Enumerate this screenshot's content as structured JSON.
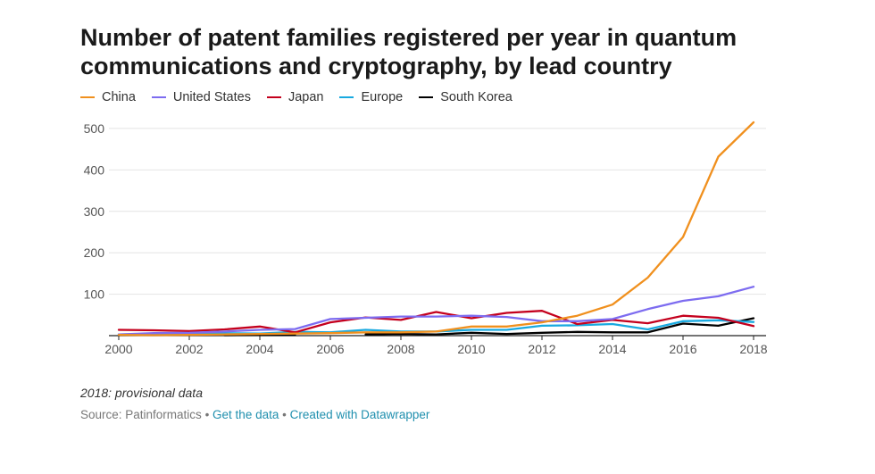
{
  "title": "Number of patent families registered per year in quantum communications and cryptography, by lead country",
  "note": "2018: provisional data",
  "footer": {
    "source": "Source: Patinformatics",
    "sep1": " • ",
    "get_data": "Get the data",
    "sep2": " • ",
    "created_with": "Created with Datawrapper"
  },
  "colors": {
    "China": "#f0901e",
    "United States": "#7d6cf0",
    "Japan": "#c4001d",
    "Europe": "#18a9e0",
    "South Korea": "#000000",
    "grid": "#e4e4e4",
    "axis": "#222222"
  },
  "chart_data": {
    "type": "line",
    "x": [
      2000,
      2001,
      2002,
      2003,
      2004,
      2005,
      2006,
      2007,
      2008,
      2009,
      2010,
      2011,
      2012,
      2013,
      2014,
      2015,
      2016,
      2017,
      2018
    ],
    "xticks": [
      2000,
      2002,
      2004,
      2006,
      2008,
      2010,
      2012,
      2014,
      2016,
      2018
    ],
    "yticks": [
      100,
      200,
      300,
      400,
      500
    ],
    "ylim": [
      0,
      530
    ],
    "grid": true,
    "legend_position": "top-left",
    "series": [
      {
        "name": "China",
        "values": [
          2,
          1,
          2,
          3,
          4,
          5,
          6,
          8,
          8,
          10,
          22,
          22,
          32,
          48,
          75,
          140,
          238,
          432,
          515
        ]
      },
      {
        "name": "United States",
        "values": [
          3,
          6,
          7,
          10,
          14,
          16,
          40,
          43,
          46,
          46,
          48,
          45,
          35,
          35,
          40,
          64,
          84,
          95,
          118
        ]
      },
      {
        "name": "Japan",
        "values": [
          14,
          13,
          11,
          15,
          22,
          8,
          32,
          44,
          38,
          57,
          42,
          55,
          60,
          28,
          38,
          30,
          48,
          43,
          23
        ]
      },
      {
        "name": "Europe",
        "values": [
          3,
          4,
          5,
          6,
          5,
          9,
          8,
          14,
          10,
          10,
          14,
          14,
          24,
          25,
          28,
          15,
          35,
          37,
          33
        ]
      },
      {
        "name": "South Korea",
        "values": [
          null,
          null,
          null,
          1,
          2,
          2,
          null,
          3,
          4,
          3,
          7,
          4,
          7,
          9,
          8,
          8,
          29,
          24,
          42
        ]
      }
    ]
  }
}
